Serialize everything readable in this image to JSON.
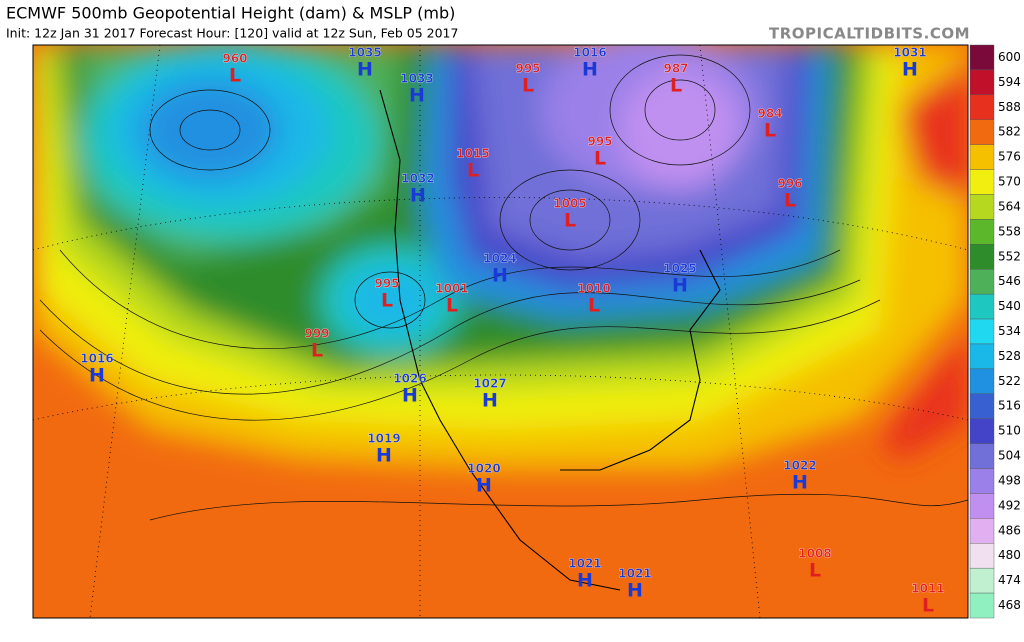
{
  "header": {
    "title": "ECMWF 500mb Geopotential Height (dam) & MSLP (mb)",
    "subtitle": "Init: 12z Jan 31 2017   Forecast Hour: [120]   valid at 12z Sun, Feb 05 2017",
    "site": "TROPICALTIDBITS.COM"
  },
  "colorbar": {
    "levels": [
      600,
      594,
      588,
      582,
      576,
      570,
      564,
      558,
      552,
      546,
      540,
      534,
      528,
      522,
      516,
      510,
      504,
      498,
      492,
      486,
      480,
      474,
      468
    ],
    "colors": [
      "#7a0a3a",
      "#c0102a",
      "#e8301e",
      "#f26a10",
      "#f5c000",
      "#f0ef10",
      "#b6d81e",
      "#5cb82a",
      "#2e8c2a",
      "#4fb05a",
      "#1ec8c0",
      "#20d8f0",
      "#1ab8e8",
      "#2090e0",
      "#3860d0",
      "#4444c8",
      "#7070d8",
      "#9a80e8",
      "#c090f0",
      "#e0b0f0",
      "#f0e0f0",
      "#c0f0d0",
      "#90f0c0"
    ]
  },
  "centers": [
    {
      "kind": "L",
      "value": 960
    },
    {
      "kind": "H",
      "value": 1035
    },
    {
      "kind": "H",
      "value": 1033
    },
    {
      "kind": "L",
      "value": 995
    },
    {
      "kind": "H",
      "value": 1016
    },
    {
      "kind": "L",
      "value": 987
    },
    {
      "kind": "H",
      "value": 1031
    },
    {
      "kind": "L",
      "value": 984
    },
    {
      "kind": "L",
      "value": 995
    },
    {
      "kind": "L",
      "value": 1015
    },
    {
      "kind": "H",
      "value": 1032
    },
    {
      "kind": "L",
      "value": 996
    },
    {
      "kind": "L",
      "value": 1005
    },
    {
      "kind": "H",
      "value": 1024
    },
    {
      "kind": "H",
      "value": 1025
    },
    {
      "kind": "L",
      "value": 995
    },
    {
      "kind": "L",
      "value": 1001
    },
    {
      "kind": "L",
      "value": 1010
    },
    {
      "kind": "L",
      "value": 999
    },
    {
      "kind": "H",
      "value": 1016
    },
    {
      "kind": "H",
      "value": 1026
    },
    {
      "kind": "H",
      "value": 1027
    },
    {
      "kind": "H",
      "value": 1019
    },
    {
      "kind": "H",
      "value": 1020
    },
    {
      "kind": "H",
      "value": 1022
    },
    {
      "kind": "L",
      "value": 1008
    },
    {
      "kind": "H",
      "value": 1021
    },
    {
      "kind": "H",
      "value": 1021
    },
    {
      "kind": "L",
      "value": 1011
    }
  ]
}
